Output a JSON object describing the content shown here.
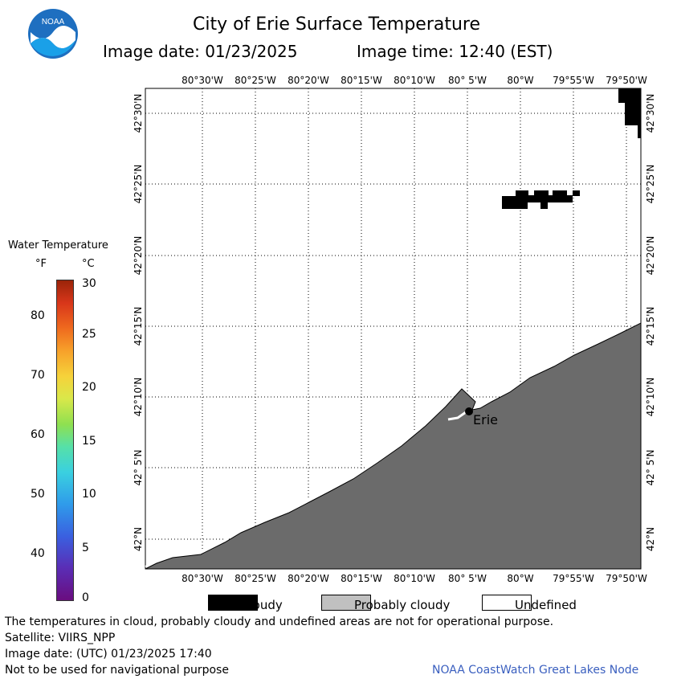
{
  "header": {
    "title": "City of Erie Surface Temperature",
    "date_text": "Image date: 01/23/2025",
    "time_text": "Image time: 12:40 (EST)",
    "logo_text": "NOAA"
  },
  "map": {
    "lon_labels": [
      "80°30'W",
      "80°25'W",
      "80°20'W",
      "80°15'W",
      "80°10'W",
      "80° 5'W",
      "80°W",
      "79°55'W",
      "79°50'W"
    ],
    "lat_labels": [
      "42°30'N",
      "42°25'N",
      "42°20'N",
      "42°15'N",
      "42°10'N",
      "42° 5'N",
      "42°N"
    ],
    "city_label": "Erie",
    "land_color": "#6b6b6b",
    "cloud_color": "#000000"
  },
  "legend": {
    "title": "Water Temperature",
    "unit_f": "°F",
    "unit_c": "°C",
    "f_ticks": [
      "80",
      "70",
      "60",
      "50",
      "40"
    ],
    "c_ticks": [
      "30",
      "25",
      "20",
      "15",
      "10",
      "5",
      "0"
    ]
  },
  "key": {
    "cloudy": "Cloudy",
    "probably_cloudy": "Probably cloudy",
    "undefined": "Undefined"
  },
  "footer": {
    "note": "The temperatures in cloud, probably cloudy and undefined areas are not for operational purpose.",
    "satellite": "Satellite: VIIRS_NPP",
    "utc_date": "Image date: (UTC) 01/23/2025  17:40",
    "nav_note": "Not to be used for navigational purpose",
    "node": "NOAA CoastWatch Great Lakes Node"
  }
}
